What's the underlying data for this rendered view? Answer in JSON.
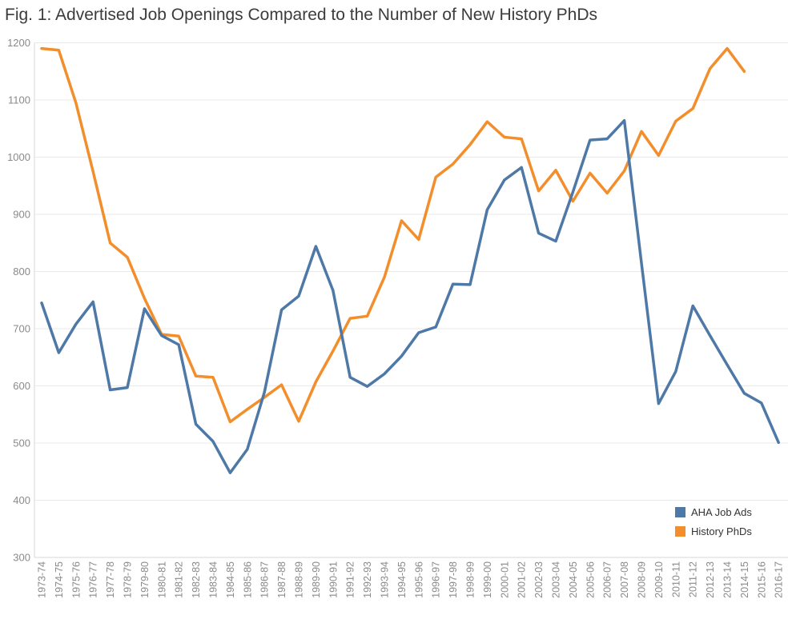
{
  "title": "Fig. 1: Advertised Job Openings Compared to the Number of New History PhDs",
  "chart_data": {
    "type": "line",
    "x_labels": [
      "1973-74",
      "1974-75",
      "1975-76",
      "1976-77",
      "1977-78",
      "1978-79",
      "1979-80",
      "1980-81",
      "1981-82",
      "1982-83",
      "1983-84",
      "1984-85",
      "1985-86",
      "1986-87",
      "1987-88",
      "1988-89",
      "1989-90",
      "1990-91",
      "1991-92",
      "1992-93",
      "1993-94",
      "1994-95",
      "1995-96",
      "1996-97",
      "1997-98",
      "1998-99",
      "1999-00",
      "2000-01",
      "2001-02",
      "2002-03",
      "2003-04",
      "2004-05",
      "2005-06",
      "2006-07",
      "2007-08",
      "2008-09",
      "2009-10",
      "2010-11",
      "2011-12",
      "2012-13",
      "2013-14",
      "2014-15",
      "2015-16",
      "2016-17"
    ],
    "series": [
      {
        "name": "AHA Job Ads",
        "color": "#4e79a7",
        "values": [
          745,
          658,
          708,
          747,
          593,
          597,
          735,
          688,
          672,
          533,
          503,
          448,
          489,
          589,
          733,
          757,
          844,
          767,
          615,
          599,
          621,
          652,
          693,
          703,
          778,
          777,
          908,
          960,
          982,
          867,
          853,
          939,
          1030,
          1032,
          1064,
          815,
          569,
          625,
          740,
          688,
          637,
          587,
          570,
          501
        ]
      },
      {
        "name": "History PhDs",
        "color": "#f28e2b",
        "values": [
          1190,
          1187,
          1095,
          975,
          850,
          825,
          753,
          690,
          687,
          617,
          615,
          537,
          559,
          580,
          602,
          538,
          607,
          661,
          718,
          722,
          790,
          889,
          856,
          965,
          988,
          1022,
          1062,
          1035,
          1032,
          941,
          977,
          923,
          972,
          937,
          976,
          1045,
          1003,
          1063,
          1085,
          1155,
          1190,
          1150,
          null,
          null
        ]
      }
    ],
    "ylim": [
      300,
      1200
    ],
    "yticks": [
      300,
      400,
      500,
      600,
      700,
      800,
      900,
      1000,
      1100,
      1200
    ],
    "grid": "horizontal",
    "legend_position": "inside-bottom-right",
    "grid_color": "#e9e9e9",
    "axis_color": "#d7d7d7",
    "tick_label_color": "#8a8a8a",
    "title_color": "#3c3c3c"
  }
}
